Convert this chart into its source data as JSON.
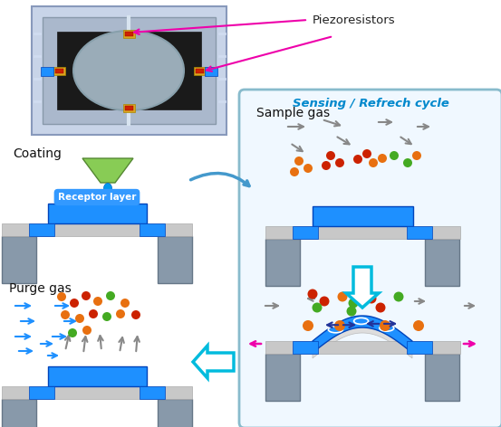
{
  "title_piezo": "Piezoresistors",
  "title_sensing": "Sensing / Refrech cycle",
  "label_coating": "Coating",
  "label_receptor": "Receptor layer",
  "label_sample": "Sample gas",
  "label_purge": "Purge gas",
  "color_blue_main": "#1E90FF",
  "color_blue_dark": "#0044BB",
  "color_gray_support": "#8899AA",
  "color_gray_beam": "#C8C8C8",
  "color_magenta": "#EE00AA",
  "color_cyan_arrow": "#00BBDD",
  "color_green_funnel": "#88CC55",
  "color_orange_mol": "#E87010",
  "color_red_mol": "#CC2200",
  "color_green_mol": "#44AA22",
  "color_white": "#FFFFFF",
  "color_bg": "#FFFFFF"
}
